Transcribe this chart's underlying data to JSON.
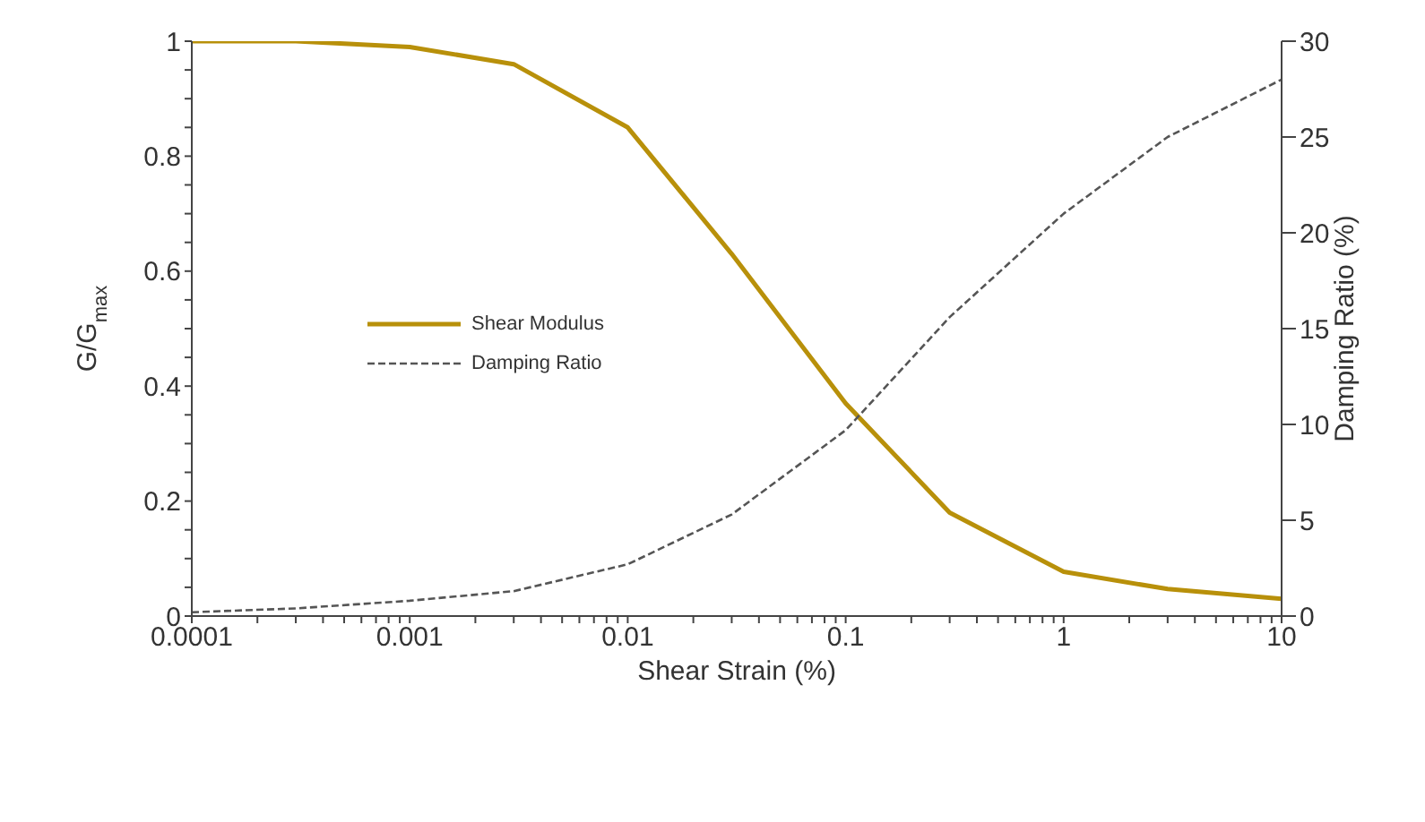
{
  "chart_data": {
    "type": "line",
    "xlabel": "Shear Strain (%)",
    "ylabel": "G/G$_{max}$",
    "y2label": "Damping Ratio (%)",
    "log": "x",
    "x": [
      0.0001,
      0.0003,
      0.001,
      0.003,
      0.01,
      0.03,
      0.1,
      0.3,
      1,
      3,
      10
    ],
    "series": [
      {
        "name": "Shear Modulus",
        "color": "#b8900a",
        "line_style": "solid",
        "values": [
          1,
          1,
          0.99,
          0.96,
          0.85,
          0.63,
          0.37,
          0.18,
          0.077,
          0.047,
          0.03
        ]
      },
      {
        "name": "Damping Ratio",
        "color": "#555555",
        "line_style": "dashed",
        "axis": "y2",
        "values": [
          0.2,
          0.4,
          0.8,
          1.3,
          2.7,
          5.3,
          9.7,
          15.6,
          21,
          25,
          28
        ]
      }
    ],
    "xlim": [
      0.0001,
      10
    ],
    "xticks": [
      0.0001,
      {
        "value": 0.0002,
        "label": null
      },
      {
        "value": 0.0003,
        "label": null
      },
      {
        "value": 0.0004,
        "label": null
      },
      {
        "value": 0.0005,
        "label": null
      },
      {
        "value": 0.0006,
        "label": null
      },
      {
        "value": 0.0007,
        "label": null
      },
      {
        "value": 0.0008,
        "label": null
      },
      {
        "value": 0.0009,
        "label": null
      },
      0.001,
      {
        "value": 0.002,
        "label": null
      },
      {
        "value": 0.003,
        "label": null
      },
      {
        "value": 0.004,
        "label": null
      },
      {
        "value": 0.005,
        "label": null
      },
      {
        "value": 0.006,
        "label": null
      },
      {
        "value": 0.007,
        "label": null
      },
      {
        "value": 0.008,
        "label": null
      },
      {
        "value": 0.009,
        "label": null
      },
      0.01,
      {
        "value": 0.02,
        "label": null
      },
      {
        "value": 0.03,
        "label": null
      },
      {
        "value": 0.04,
        "label": null
      },
      {
        "value": 0.05,
        "label": null
      },
      {
        "value": 0.06,
        "label": null
      },
      {
        "value": 0.07,
        "label": null
      },
      {
        "value": 0.08,
        "label": null
      },
      {
        "value": 0.09,
        "label": null
      },
      0.1,
      {
        "value": 0.2,
        "label": null
      },
      {
        "value": 0.3,
        "label": null
      },
      {
        "value": 0.4,
        "label": null
      },
      {
        "value": 0.5,
        "label": null
      },
      {
        "value": 0.6,
        "label": null
      },
      {
        "value": 0.7,
        "label": null
      },
      {
        "value": 0.8,
        "label": null
      },
      {
        "value": 0.9,
        "label": null
      },
      1,
      {
        "value": 2,
        "label": null
      },
      {
        "value": 3,
        "label": null
      },
      {
        "value": 4,
        "label": null
      },
      {
        "value": 5,
        "label": null
      },
      {
        "value": 6,
        "label": null
      },
      {
        "value": 7,
        "label": null
      },
      {
        "value": 8,
        "label": null
      },
      {
        "value": 9,
        "label": null
      },
      10
    ],
    "ylim": [
      0,
      1
    ],
    "yticks": [
      0,
      {
        "value": 0.05,
        "label": null
      },
      {
        "value": 0.1,
        "label": null
      },
      {
        "value": 0.15,
        "label": null
      },
      0.2,
      {
        "value": 0.25,
        "label": null
      },
      {
        "value": 0.3,
        "label": null
      },
      {
        "value": 0.35,
        "label": null
      },
      0.4,
      {
        "value": 0.45,
        "label": null
      },
      {
        "value": 0.5,
        "label": null
      },
      {
        "value": 0.55,
        "label": null
      },
      0.6,
      {
        "value": 0.65,
        "label": null
      },
      {
        "value": 0.7,
        "label": null
      },
      {
        "value": 0.75,
        "label": null
      },
      0.8,
      {
        "value": 0.85,
        "label": null
      },
      {
        "value": 0.9,
        "label": null
      },
      {
        "value": 0.95,
        "label": null
      },
      1
    ],
    "y2lim": [
      0,
      30
    ],
    "y2ticks": [
      0,
      5,
      10,
      15,
      20,
      25,
      30
    ],
    "grid": false,
    "legend": "left",
    "marker": "none"
  }
}
